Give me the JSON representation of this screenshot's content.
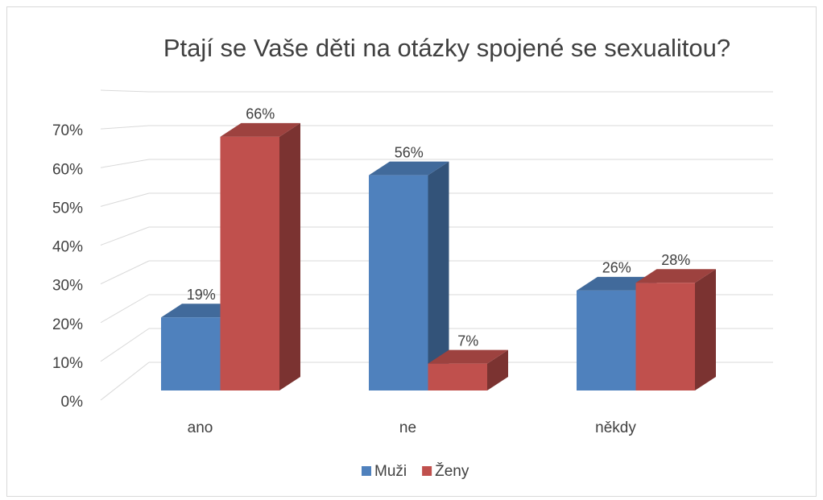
{
  "chart_data": {
    "type": "bar3d",
    "title": "Ptají se Vaše děti na otázky spojené se sexualitou?",
    "categories": [
      "ano",
      "ne",
      "někdy"
    ],
    "series": [
      {
        "name": "Muži",
        "color": "#4f81bd",
        "values": [
          19,
          56,
          26
        ],
        "value_labels": [
          "19%",
          "56%",
          "26%"
        ]
      },
      {
        "name": "Ženy",
        "color": "#c0504d",
        "values": [
          66,
          7,
          28
        ],
        "value_labels": [
          "66%",
          "7%",
          "28%"
        ]
      }
    ],
    "ylim": [
      0,
      80
    ],
    "yticks": [
      {
        "value": 0,
        "label": "0%"
      },
      {
        "value": 10,
        "label": "10%"
      },
      {
        "value": 20,
        "label": "20%"
      },
      {
        "value": 30,
        "label": "30%"
      },
      {
        "value": 40,
        "label": "40%"
      },
      {
        "value": 50,
        "label": "50%"
      },
      {
        "value": 60,
        "label": "60%"
      },
      {
        "value": 70,
        "label": "70%"
      }
    ],
    "grid": true,
    "legend": "bottom"
  }
}
